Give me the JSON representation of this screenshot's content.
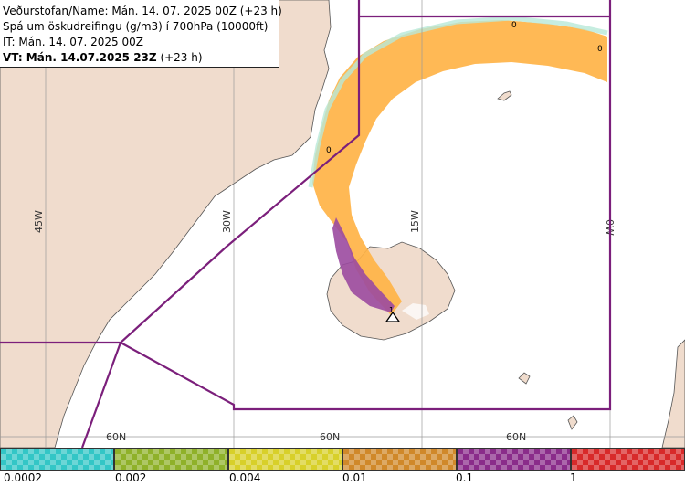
{
  "info": {
    "line1_label": "Veðurstofan/Name:",
    "line1_value": "Mán. 14. 07. 2025 00Z (+23 h)",
    "line2": "Spá um öskudreifingu (g/m3) í 700hPa (10000ft)",
    "line3": "IT: Mán. 14. 07. 2025 00Z",
    "line4_label": "VT: Mán. 14.07.2025 23Z",
    "line4_value": "(+23 h)"
  },
  "graticule": {
    "lon_labels": [
      "45W",
      "30W",
      "15W",
      "0W"
    ],
    "lat_labels": [
      "60N",
      "60N",
      "60N"
    ]
  },
  "map_markers": {
    "zero_labels": [
      "0",
      "0",
      "0"
    ],
    "volcano_label": "1"
  },
  "colors": {
    "land": "#f0dccd",
    "sea": "#ffffff",
    "boundary": "#7b1f7b",
    "ash_low": "#ffb347",
    "ash_high": "#9b4aa0",
    "ash_trace": "#b8e8d8",
    "grid": "#9a9a9a"
  },
  "legend": {
    "colors": [
      "#33c6c6",
      "#8fb12a",
      "#d8d02a",
      "#d0882a",
      "#8a2c8a",
      "#d82a2a"
    ],
    "ticks": [
      "0.0002",
      "0.002",
      "0.004",
      "0.01",
      "0.1",
      "1"
    ]
  }
}
